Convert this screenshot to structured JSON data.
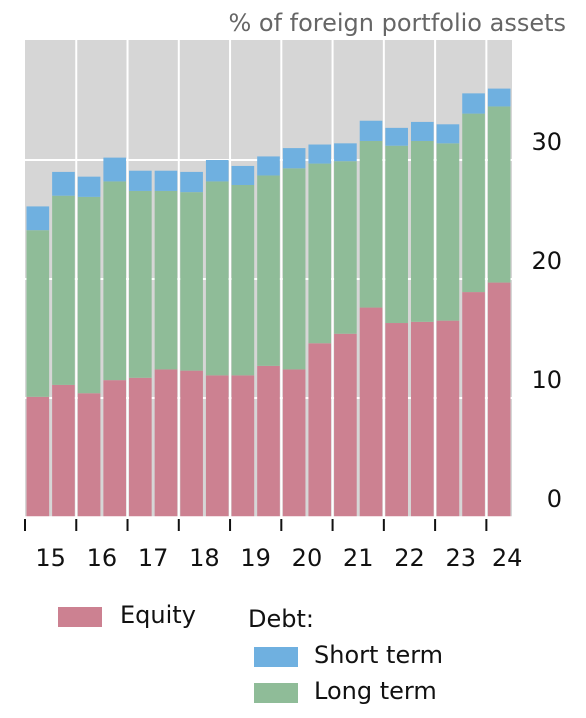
{
  "chart_data": {
    "type": "bar",
    "stacked": true,
    "title": "% of foreign portfolio assets",
    "x_tick_labels": [
      "15",
      "16",
      "17",
      "18",
      "19",
      "20",
      "21",
      "22",
      "23",
      "24"
    ],
    "y_ticks": [
      0,
      10,
      20,
      30
    ],
    "ylim": [
      0,
      40
    ],
    "grid": true,
    "legend_position": "bottom",
    "series": [
      {
        "name": "Equity",
        "color": "#cc8191",
        "values": [
          10.1,
          11.1,
          10.4,
          11.5,
          11.7,
          12.4,
          12.3,
          11.9,
          11.9,
          12.7,
          12.4,
          14.6,
          15.4,
          17.6,
          16.3,
          16.4,
          16.5,
          18.9,
          19.7
        ]
      },
      {
        "name": "Long term",
        "color": "#8fbc98",
        "values": [
          14.0,
          15.9,
          16.5,
          16.7,
          15.7,
          15.0,
          15.0,
          16.3,
          16.0,
          16.0,
          16.9,
          15.1,
          14.5,
          14.0,
          14.9,
          15.2,
          14.9,
          15.0,
          14.8
        ]
      },
      {
        "name": "Short term",
        "color": "#6fb0e0",
        "values": [
          2.0,
          2.0,
          1.7,
          2.0,
          1.7,
          1.7,
          1.7,
          1.8,
          1.6,
          1.6,
          1.7,
          1.6,
          1.5,
          1.7,
          1.5,
          1.6,
          1.6,
          1.7,
          1.5
        ]
      }
    ]
  },
  "legend": {
    "equity_label": "Equity",
    "debt_heading": "Debt:",
    "short_term_label": "Short term",
    "long_term_label": "Long term"
  }
}
